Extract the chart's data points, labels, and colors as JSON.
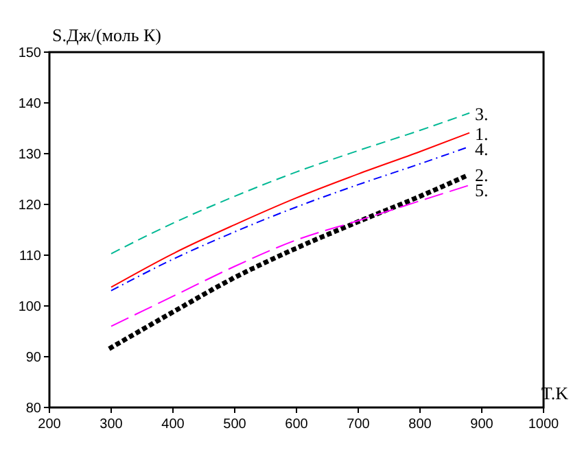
{
  "chart_data": {
    "type": "line",
    "xlabel": "T.K",
    "ylabel": "S.Дж/(моль К)",
    "x": [
      300,
      400,
      500,
      600,
      700,
      800,
      880
    ],
    "series": [
      {
        "name": "1.",
        "color": "#ff0000",
        "line_style": "solid",
        "values": [
          103.7,
          110.3,
          116,
          121.3,
          126,
          130.4,
          134.1
        ]
      },
      {
        "name": "2.",
        "color": "#000000",
        "line_style": "dotted",
        "values": [
          91.8,
          98.8,
          105.6,
          111.4,
          116.6,
          121.6,
          125.9
        ]
      },
      {
        "name": "3.",
        "color": "#00b894",
        "line_style": "dashed",
        "values": [
          110.3,
          116.3,
          121.6,
          126.4,
          130.6,
          134.6,
          138
        ]
      },
      {
        "name": "4.",
        "color": "#0000ff",
        "line_style": "dashdot",
        "values": [
          103,
          109.2,
          114.6,
          119.5,
          123.9,
          128,
          131.4
        ]
      },
      {
        "name": "5.",
        "color": "#ff00ff",
        "line_style": "longdash",
        "values": [
          96,
          101.9,
          107.8,
          113,
          116.8,
          120.7,
          123.8
        ]
      }
    ],
    "xlim": [
      200,
      1000
    ],
    "xticks": [
      200,
      300,
      400,
      500,
      600,
      700,
      800,
      900,
      1000
    ],
    "ylim": [
      80,
      150
    ],
    "yticks": [
      80,
      90,
      100,
      110,
      120,
      130,
      140,
      150
    ],
    "grid": false,
    "legend": false,
    "marker": "none"
  }
}
